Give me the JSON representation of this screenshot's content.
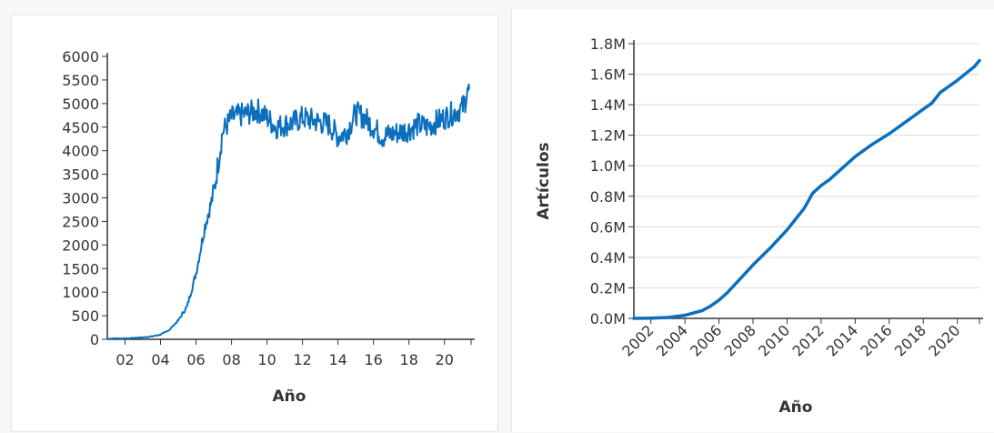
{
  "chart_data": [
    {
      "type": "line",
      "title": "",
      "xlabel": "Año",
      "ylabel": "",
      "ylim": [
        0,
        6000
      ],
      "xlim": [
        2001,
        2021.5
      ],
      "grid": false,
      "yticks": [
        "0",
        "500",
        "1000",
        "1500",
        "2000",
        "2500",
        "3000",
        "3500",
        "4000",
        "4500",
        "5000",
        "5500",
        "6000"
      ],
      "xticks": [
        "02",
        "04",
        "06",
        "08",
        "10",
        "12",
        "14",
        "16",
        "18",
        "20"
      ],
      "color": "#0b6fbd",
      "series": [
        {
          "x": [
            2001.0,
            2001.5,
            2002.0,
            2002.5,
            2003.0,
            2003.5,
            2004.0,
            2004.5,
            2005.0,
            2005.5,
            2006.0,
            2006.5,
            2007.0,
            2007.5,
            2008.0,
            2008.5,
            2009.0,
            2009.5,
            2010.0,
            2010.5,
            2011.0,
            2011.5,
            2012.0,
            2012.5,
            2013.0,
            2013.5,
            2014.0,
            2014.5,
            2015.0,
            2015.5,
            2016.0,
            2016.5,
            2017.0,
            2017.5,
            2018.0,
            2018.5,
            2019.0,
            2019.5,
            2020.0,
            2020.5,
            2021.0,
            2021.4
          ],
          "values": [
            10,
            20,
            15,
            30,
            40,
            60,
            100,
            200,
            400,
            700,
            1400,
            2400,
            3100,
            4400,
            4700,
            4750,
            4800,
            4850,
            4700,
            4500,
            4550,
            4600,
            4700,
            4650,
            4600,
            4550,
            4300,
            4400,
            4800,
            4700,
            4500,
            4300,
            4350,
            4400,
            4450,
            4550,
            4500,
            4600,
            4700,
            4800,
            4900,
            5300
          ]
        }
      ]
    },
    {
      "type": "line",
      "title": "",
      "xlabel": "Año",
      "ylabel": "Artículos",
      "ylim": [
        0,
        1800000
      ],
      "xlim": [
        2001,
        2021.3
      ],
      "grid": true,
      "yticks": [
        "0.0M",
        "0.2M",
        "0.4M",
        "0.6M",
        "0.8M",
        "1.0M",
        "1.2M",
        "1.4M",
        "1.6M",
        "1.8M"
      ],
      "xticks": [
        "2002",
        "2004",
        "2006",
        "2008",
        "2010",
        "2012",
        "2014",
        "2016",
        "2018",
        "2020"
      ],
      "color": "#0b6fbd",
      "series": [
        {
          "x": [
            2001.0,
            2002.0,
            2003.0,
            2004.0,
            2005.0,
            2005.5,
            2006.0,
            2006.5,
            2007.0,
            2007.5,
            2008.0,
            2009.0,
            2010.0,
            2010.5,
            2011.0,
            2011.5,
            2012.0,
            2012.5,
            2013.0,
            2014.0,
            2015.0,
            2016.0,
            2017.0,
            2018.0,
            2018.5,
            2019.0,
            2020.0,
            2021.0,
            2021.3
          ],
          "values": [
            0,
            2000,
            6000,
            20000,
            50000,
            80000,
            120000,
            170000,
            230000,
            290000,
            350000,
            460000,
            580000,
            650000,
            720000,
            820000,
            870000,
            910000,
            960000,
            1060000,
            1140000,
            1210000,
            1290000,
            1370000,
            1410000,
            1480000,
            1560000,
            1650000,
            1690000
          ]
        }
      ]
    }
  ]
}
